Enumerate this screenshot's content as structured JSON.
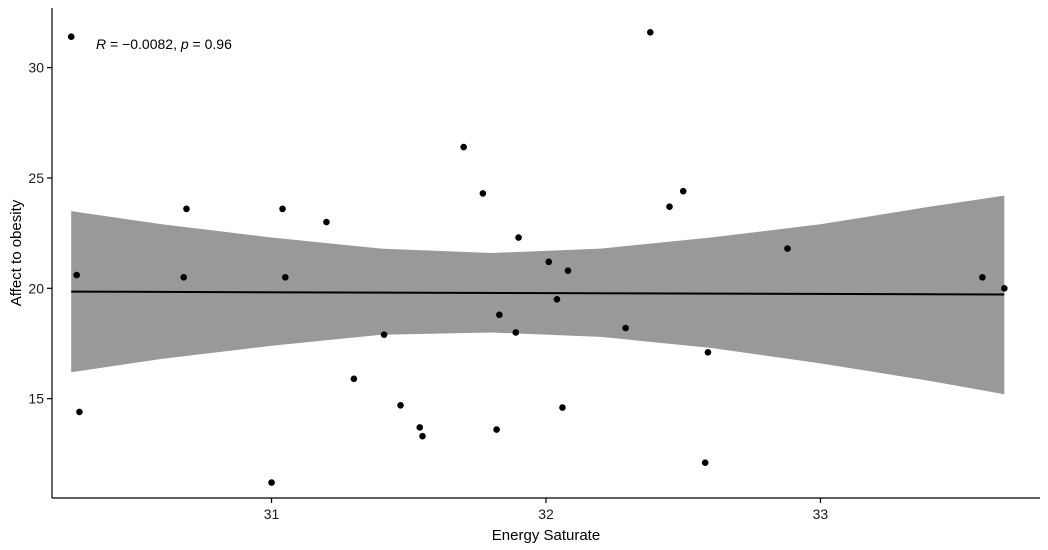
{
  "chart_data": {
    "type": "scatter",
    "xlabel": "Energy Saturate",
    "ylabel": "Affect to obesity",
    "xlim": [
      30.2,
      33.8
    ],
    "ylim": [
      10.5,
      32.7
    ],
    "x_ticks": [
      31,
      32,
      33
    ],
    "y_ticks": [
      15,
      20,
      25,
      30
    ],
    "x_tick_labels": [
      "31",
      "32",
      "33"
    ],
    "y_tick_labels": [
      "15",
      "20",
      "25",
      "30"
    ],
    "grid": false,
    "legend": "none",
    "points": [
      {
        "x": 30.27,
        "y": 31.4
      },
      {
        "x": 30.29,
        "y": 20.6
      },
      {
        "x": 30.3,
        "y": 14.4
      },
      {
        "x": 30.68,
        "y": 20.5
      },
      {
        "x": 30.69,
        "y": 23.6
      },
      {
        "x": 31.0,
        "y": 11.2
      },
      {
        "x": 31.04,
        "y": 23.6
      },
      {
        "x": 31.05,
        "y": 20.5
      },
      {
        "x": 31.2,
        "y": 23.0
      },
      {
        "x": 31.3,
        "y": 15.9
      },
      {
        "x": 31.41,
        "y": 17.9
      },
      {
        "x": 31.47,
        "y": 14.7
      },
      {
        "x": 31.54,
        "y": 13.7
      },
      {
        "x": 31.55,
        "y": 13.3
      },
      {
        "x": 31.7,
        "y": 26.4
      },
      {
        "x": 31.77,
        "y": 24.3
      },
      {
        "x": 31.82,
        "y": 13.6
      },
      {
        "x": 31.83,
        "y": 18.8
      },
      {
        "x": 31.89,
        "y": 18.0
      },
      {
        "x": 31.9,
        "y": 22.3
      },
      {
        "x": 32.01,
        "y": 21.2
      },
      {
        "x": 32.04,
        "y": 19.5
      },
      {
        "x": 32.06,
        "y": 14.6
      },
      {
        "x": 32.08,
        "y": 20.8
      },
      {
        "x": 32.29,
        "y": 18.2
      },
      {
        "x": 32.38,
        "y": 31.6
      },
      {
        "x": 32.45,
        "y": 23.7
      },
      {
        "x": 32.5,
        "y": 24.4
      },
      {
        "x": 32.58,
        "y": 12.1
      },
      {
        "x": 32.59,
        "y": 17.1
      },
      {
        "x": 32.88,
        "y": 21.8
      },
      {
        "x": 33.59,
        "y": 20.5
      },
      {
        "x": 33.67,
        "y": 20.0
      }
    ],
    "regression": {
      "x_range": [
        30.27,
        33.67
      ],
      "fit_start": 19.85,
      "fit_end": 19.72
    },
    "confidence_band": {
      "x": [
        30.27,
        30.6,
        31.0,
        31.4,
        31.8,
        32.2,
        32.6,
        33.0,
        33.4,
        33.67
      ],
      "lower": [
        16.2,
        16.8,
        17.4,
        17.9,
        18.0,
        17.8,
        17.3,
        16.6,
        15.8,
        15.2
      ],
      "upper": [
        23.5,
        22.9,
        22.3,
        21.8,
        21.6,
        21.8,
        22.3,
        22.9,
        23.7,
        24.2
      ]
    },
    "annotation": {
      "r_symbol": "R",
      "r_text": " = −0.0082, ",
      "p_symbol": "p",
      "p_text": " = 0.96"
    },
    "colors": {
      "points": "#000000",
      "line": "#000000",
      "band": "#999999",
      "axis": "#000000"
    }
  }
}
